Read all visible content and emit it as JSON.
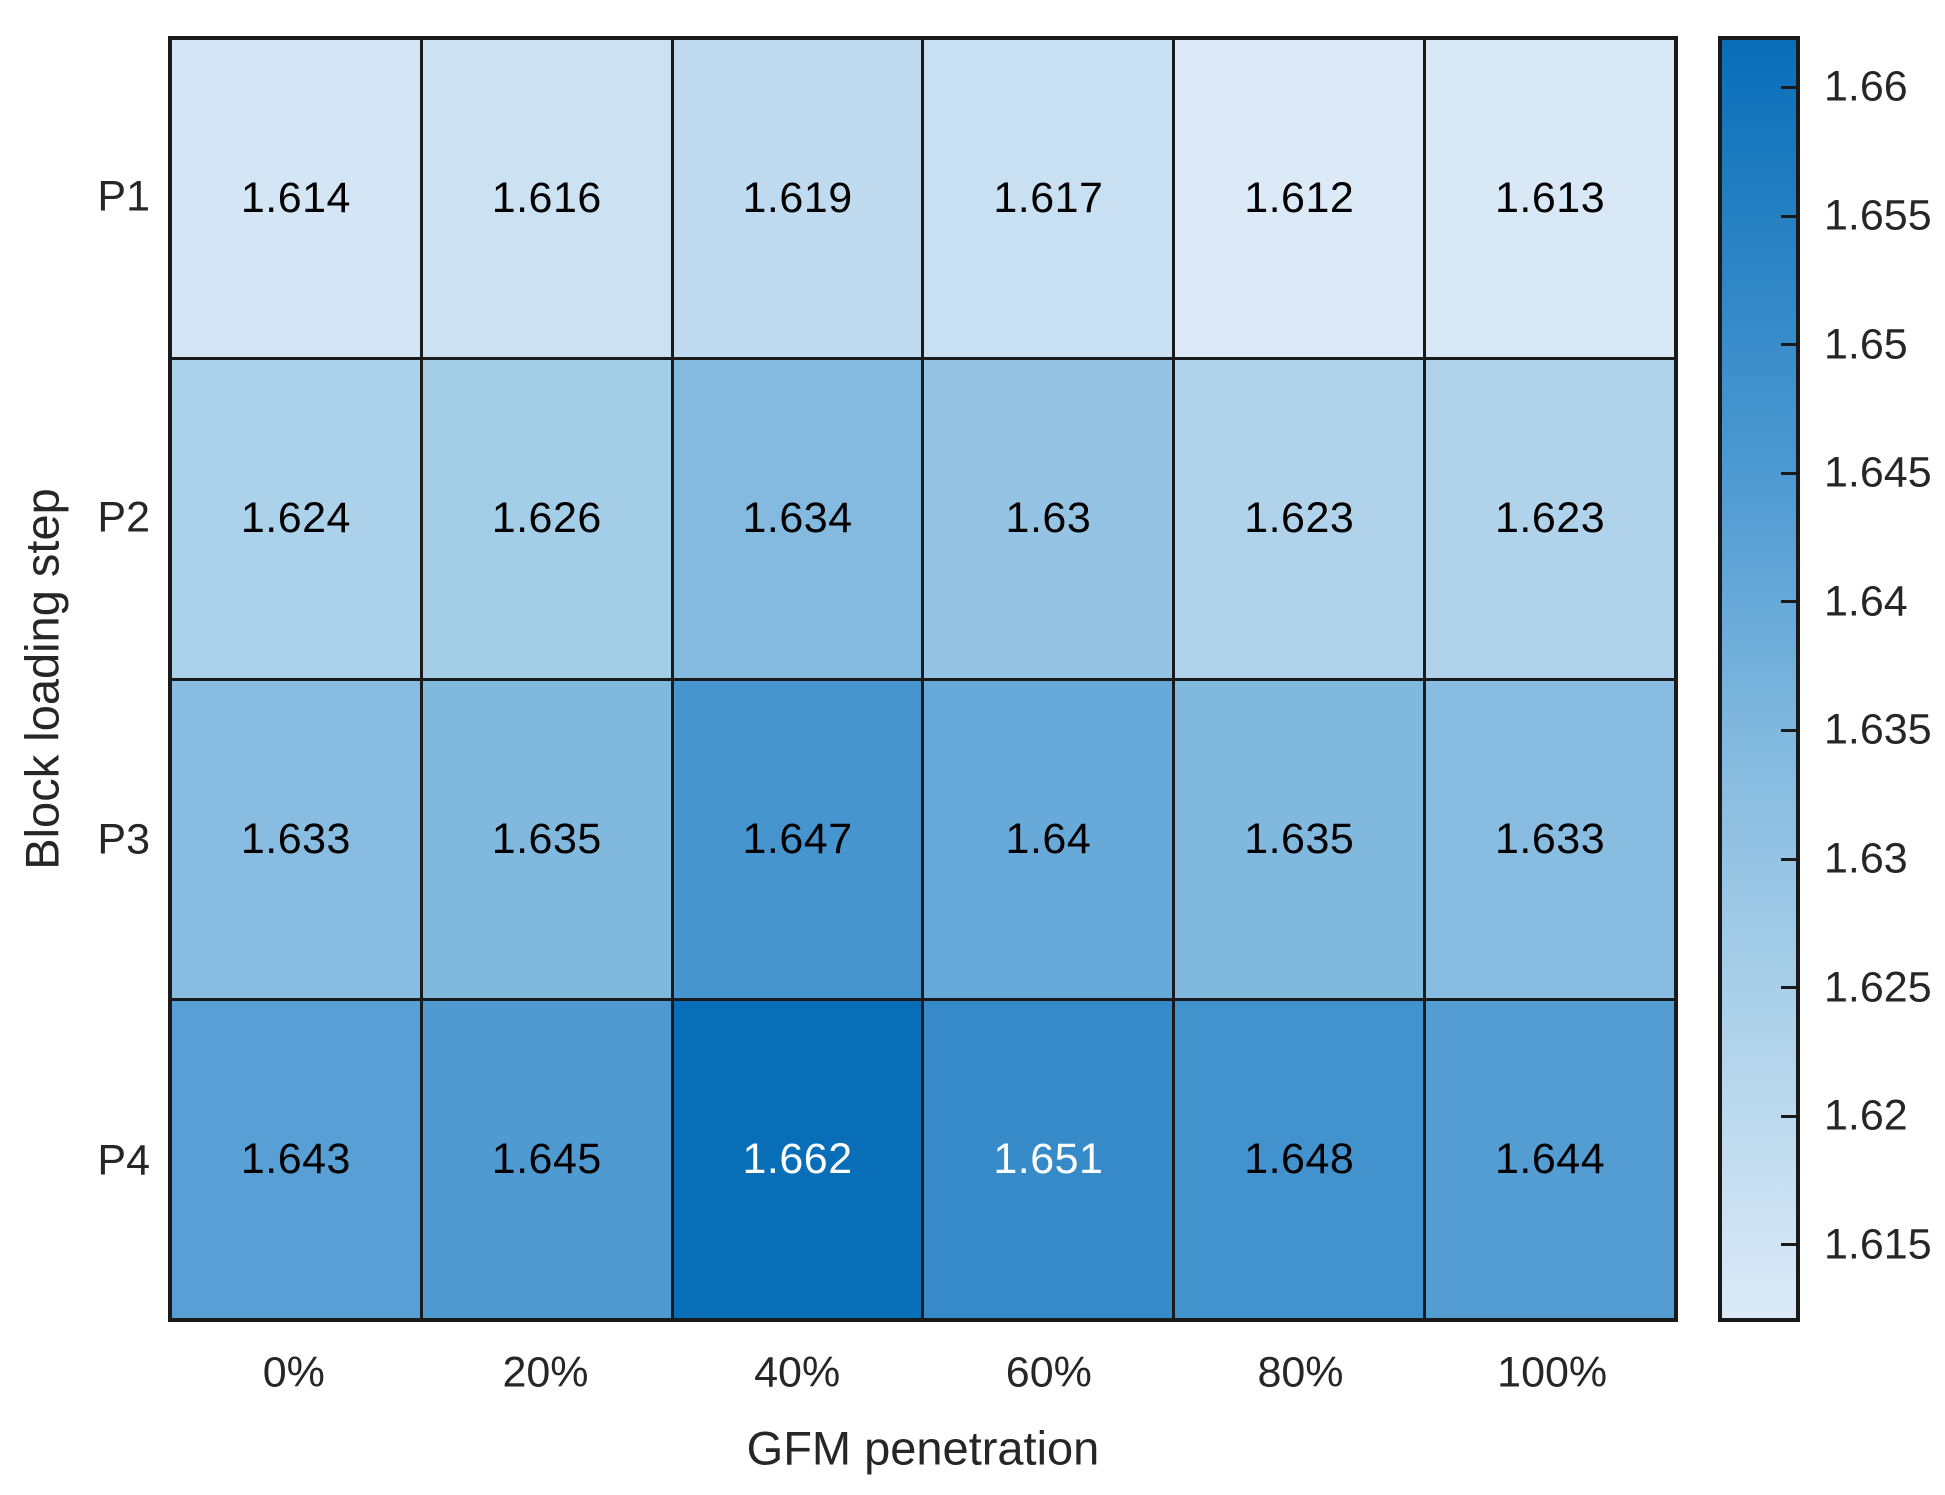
{
  "chart_data": {
    "type": "heatmap",
    "title": "",
    "xlabel": "GFM penetration",
    "ylabel": "Block loading step",
    "x_categories": [
      "0%",
      "20%",
      "40%",
      "60%",
      "80%",
      "100%"
    ],
    "y_categories": [
      "P1",
      "P2",
      "P3",
      "P4"
    ],
    "values": [
      [
        1.614,
        1.616,
        1.619,
        1.617,
        1.612,
        1.613
      ],
      [
        1.624,
        1.626,
        1.634,
        1.63,
        1.623,
        1.623
      ],
      [
        1.633,
        1.635,
        1.647,
        1.64,
        1.635,
        1.633
      ],
      [
        1.643,
        1.645,
        1.662,
        1.651,
        1.648,
        1.644
      ]
    ],
    "value_labels": [
      [
        "1.614",
        "1.616",
        "1.619",
        "1.617",
        "1.612",
        "1.613"
      ],
      [
        "1.624",
        "1.626",
        "1.634",
        "1.63",
        "1.623",
        "1.623"
      ],
      [
        "1.633",
        "1.635",
        "1.647",
        "1.64",
        "1.635",
        "1.633"
      ],
      [
        "1.643",
        "1.645",
        "1.662",
        "1.651",
        "1.648",
        "1.644"
      ]
    ],
    "color_min": 1.612,
    "color_max": 1.662,
    "colormap_stops": [
      {
        "t": 0.0,
        "rgb": [
          220,
          234,
          247
        ]
      },
      {
        "t": 0.25,
        "rgb": [
          170,
          208,
          233
        ]
      },
      {
        "t": 0.45,
        "rgb": [
          130,
          185,
          223
        ]
      },
      {
        "t": 0.65,
        "rgb": [
          80,
          155,
          210
        ]
      },
      {
        "t": 1.0,
        "rgb": [
          9,
          110,
          184
        ]
      }
    ],
    "white_text_threshold": 0.75,
    "cell_text_black": "#000000",
    "cell_text_white": "#ffffff",
    "grid_line_color": "#1a1a1a",
    "colorbar": {
      "ticks": [
        "1.615",
        "1.62",
        "1.625",
        "1.63",
        "1.635",
        "1.64",
        "1.645",
        "1.65",
        "1.655",
        "1.66"
      ],
      "tick_values": [
        1.615,
        1.62,
        1.625,
        1.63,
        1.635,
        1.64,
        1.645,
        1.65,
        1.655,
        1.66
      ],
      "min": 1.612,
      "max": 1.662,
      "position": "right"
    }
  }
}
